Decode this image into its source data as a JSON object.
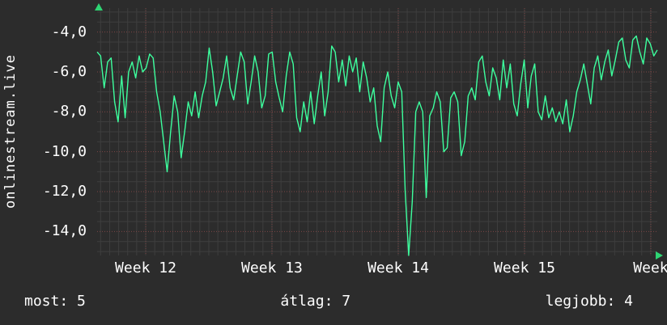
{
  "page": {
    "background": "#2c2c2c",
    "text_color": "#ffffff"
  },
  "watermark": {
    "text": "onlinestream.live"
  },
  "chart_data": {
    "type": "line",
    "title": "",
    "xlabel": "",
    "ylabel": "",
    "x_tick_labels": [
      "Week 12",
      "Week 13",
      "Week 14",
      "Week 15",
      "Week"
    ],
    "x_tick_pos": [
      0.0867,
      0.3121,
      0.5376,
      0.763,
      0.9884
    ],
    "y_ticks": [
      -4,
      -6,
      -8,
      -10,
      -12,
      -14
    ],
    "y_tick_labels": [
      "-4,0",
      "-6,0",
      "-8,0",
      "-10,0",
      "-12,0",
      "-14,0"
    ],
    "ylim": [
      -15.2,
      -2.8
    ],
    "grid": "on",
    "line_color": "#3dff9e",
    "arrow_color": "#2ed573",
    "grid_minor_color": "#3e3e3e",
    "grid_major_color": "#7c4646",
    "values": [
      -5.0,
      -5.2,
      -6.8,
      -5.5,
      -5.3,
      -7.5,
      -8.5,
      -6.2,
      -8.3,
      -6.0,
      -5.5,
      -6.3,
      -5.2,
      -6.0,
      -5.8,
      -5.1,
      -5.3,
      -7.0,
      -8.0,
      -9.5,
      -11.0,
      -9.0,
      -7.2,
      -8.0,
      -10.3,
      -9.0,
      -7.5,
      -8.2,
      -7.0,
      -8.3,
      -7.2,
      -6.5,
      -4.8,
      -6.0,
      -7.7,
      -7.0,
      -6.3,
      -5.2,
      -6.8,
      -7.4,
      -6.2,
      -5.0,
      -5.5,
      -7.6,
      -6.5,
      -5.2,
      -6.0,
      -7.8,
      -7.2,
      -5.1,
      -5.0,
      -6.5,
      -7.3,
      -8.0,
      -6.2,
      -5.0,
      -5.6,
      -8.3,
      -9.0,
      -7.5,
      -8.5,
      -7.0,
      -8.6,
      -7.2,
      -6.0,
      -8.2,
      -7.0,
      -4.7,
      -5.0,
      -6.5,
      -5.4,
      -6.7,
      -5.2,
      -6.0,
      -5.3,
      -7.0,
      -5.5,
      -6.3,
      -7.5,
      -6.8,
      -8.7,
      -9.5,
      -6.8,
      -6.0,
      -7.2,
      -7.8,
      -6.5,
      -7.0,
      -12.0,
      -15.2,
      -12.5,
      -8.0,
      -7.5,
      -8.0,
      -12.3,
      -8.2,
      -7.8,
      -7.0,
      -7.5,
      -10.0,
      -9.8,
      -7.3,
      -7.0,
      -7.5,
      -10.2,
      -9.5,
      -7.2,
      -6.8,
      -7.4,
      -5.5,
      -5.2,
      -6.5,
      -7.2,
      -5.8,
      -6.3,
      -7.4,
      -5.4,
      -6.8,
      -5.6,
      -7.6,
      -8.2,
      -6.6,
      -5.4,
      -7.8,
      -6.2,
      -5.6,
      -8.0,
      -8.4,
      -7.2,
      -8.3,
      -7.8,
      -8.5,
      -8.0,
      -8.6,
      -7.4,
      -9.0,
      -8.2,
      -7.0,
      -6.4,
      -5.6,
      -6.6,
      -7.6,
      -5.8,
      -5.2,
      -6.4,
      -5.5,
      -4.9,
      -6.2,
      -5.4,
      -4.5,
      -4.3,
      -5.4,
      -5.8,
      -4.4,
      -4.2,
      -5.0,
      -5.6,
      -4.3,
      -4.6,
      -5.2,
      -4.9
    ]
  },
  "footer": {
    "most": "most: 5",
    "atlag": "átlag: 7",
    "legjobb": "legjobb: 4"
  }
}
